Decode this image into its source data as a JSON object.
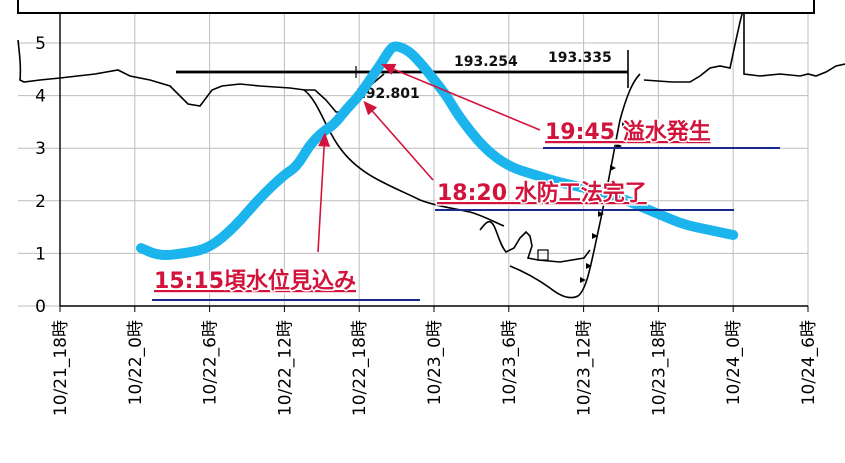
{
  "chart_data": {
    "type": "line",
    "title": "",
    "xlabel": "",
    "ylabel": "",
    "x_ticks": [
      "10/21_18時",
      "10/22_0時",
      "10/22_6時",
      "10/22_12時",
      "10/22_18時",
      "10/23_0時",
      "10/23_6時",
      "10/23_12時",
      "10/23_18時",
      "10/24_0時",
      "10/24_6時"
    ],
    "y_ticks": [
      0,
      1,
      2,
      3,
      4,
      5
    ],
    "ylim": [
      0,
      5.2
    ],
    "grid": true,
    "colors": {
      "series": "#1cb4ec",
      "annotation": "#d2143c",
      "underline": "#1a2a8c"
    },
    "series": [
      {
        "x": [
          "2021-10-22T00:30",
          "2021-10-22T02:00",
          "2021-10-22T04:00",
          "2021-10-22T06:00",
          "2021-10-22T08:00",
          "2021-10-22T10:00",
          "2021-10-22T12:00",
          "2021-10-22T13:00",
          "2021-10-22T14:00",
          "2021-10-22T15:00",
          "2021-10-22T16:00",
          "2021-10-22T17:00",
          "2021-10-22T18:00",
          "2021-10-22T19:00",
          "2021-10-22T19:45",
          "2021-10-22T20:30",
          "2021-10-22T21:00",
          "2021-10-22T22:00",
          "2021-10-22T23:00",
          "2021-10-23T00:00",
          "2021-10-23T01:00",
          "2021-10-23T02:00",
          "2021-10-23T04:00",
          "2021-10-23T06:00",
          "2021-10-23T08:00",
          "2021-10-23T10:00",
          "2021-10-23T12:00",
          "2021-10-23T14:00",
          "2021-10-23T16:00",
          "2021-10-23T18:00",
          "2021-10-23T20:00",
          "2021-10-23T22:00",
          "2021-10-24T00:00"
        ],
        "values": [
          1.1,
          0.95,
          1.0,
          1.1,
          1.5,
          2.05,
          2.5,
          2.65,
          3.05,
          3.3,
          3.45,
          3.75,
          4.0,
          4.35,
          4.6,
          4.9,
          4.95,
          4.85,
          4.6,
          4.3,
          4.0,
          3.6,
          3.0,
          2.65,
          2.5,
          2.35,
          2.25,
          2.15,
          1.95,
          1.75,
          1.55,
          1.45,
          1.35
        ]
      }
    ],
    "annotations": [
      {
        "label": "15:15頃水位見込み",
        "x": "2021-10-22T15:15",
        "y": 3.3
      },
      {
        "label": "18:20 水防工法完了",
        "x": "2021-10-22T18:20",
        "y": 3.9
      },
      {
        "label": "19:45 溢水発生",
        "x": "2021-10-22T19:45",
        "y": 4.6
      }
    ],
    "background_labels": [
      "193.254",
      "193.335",
      "192.801"
    ]
  }
}
